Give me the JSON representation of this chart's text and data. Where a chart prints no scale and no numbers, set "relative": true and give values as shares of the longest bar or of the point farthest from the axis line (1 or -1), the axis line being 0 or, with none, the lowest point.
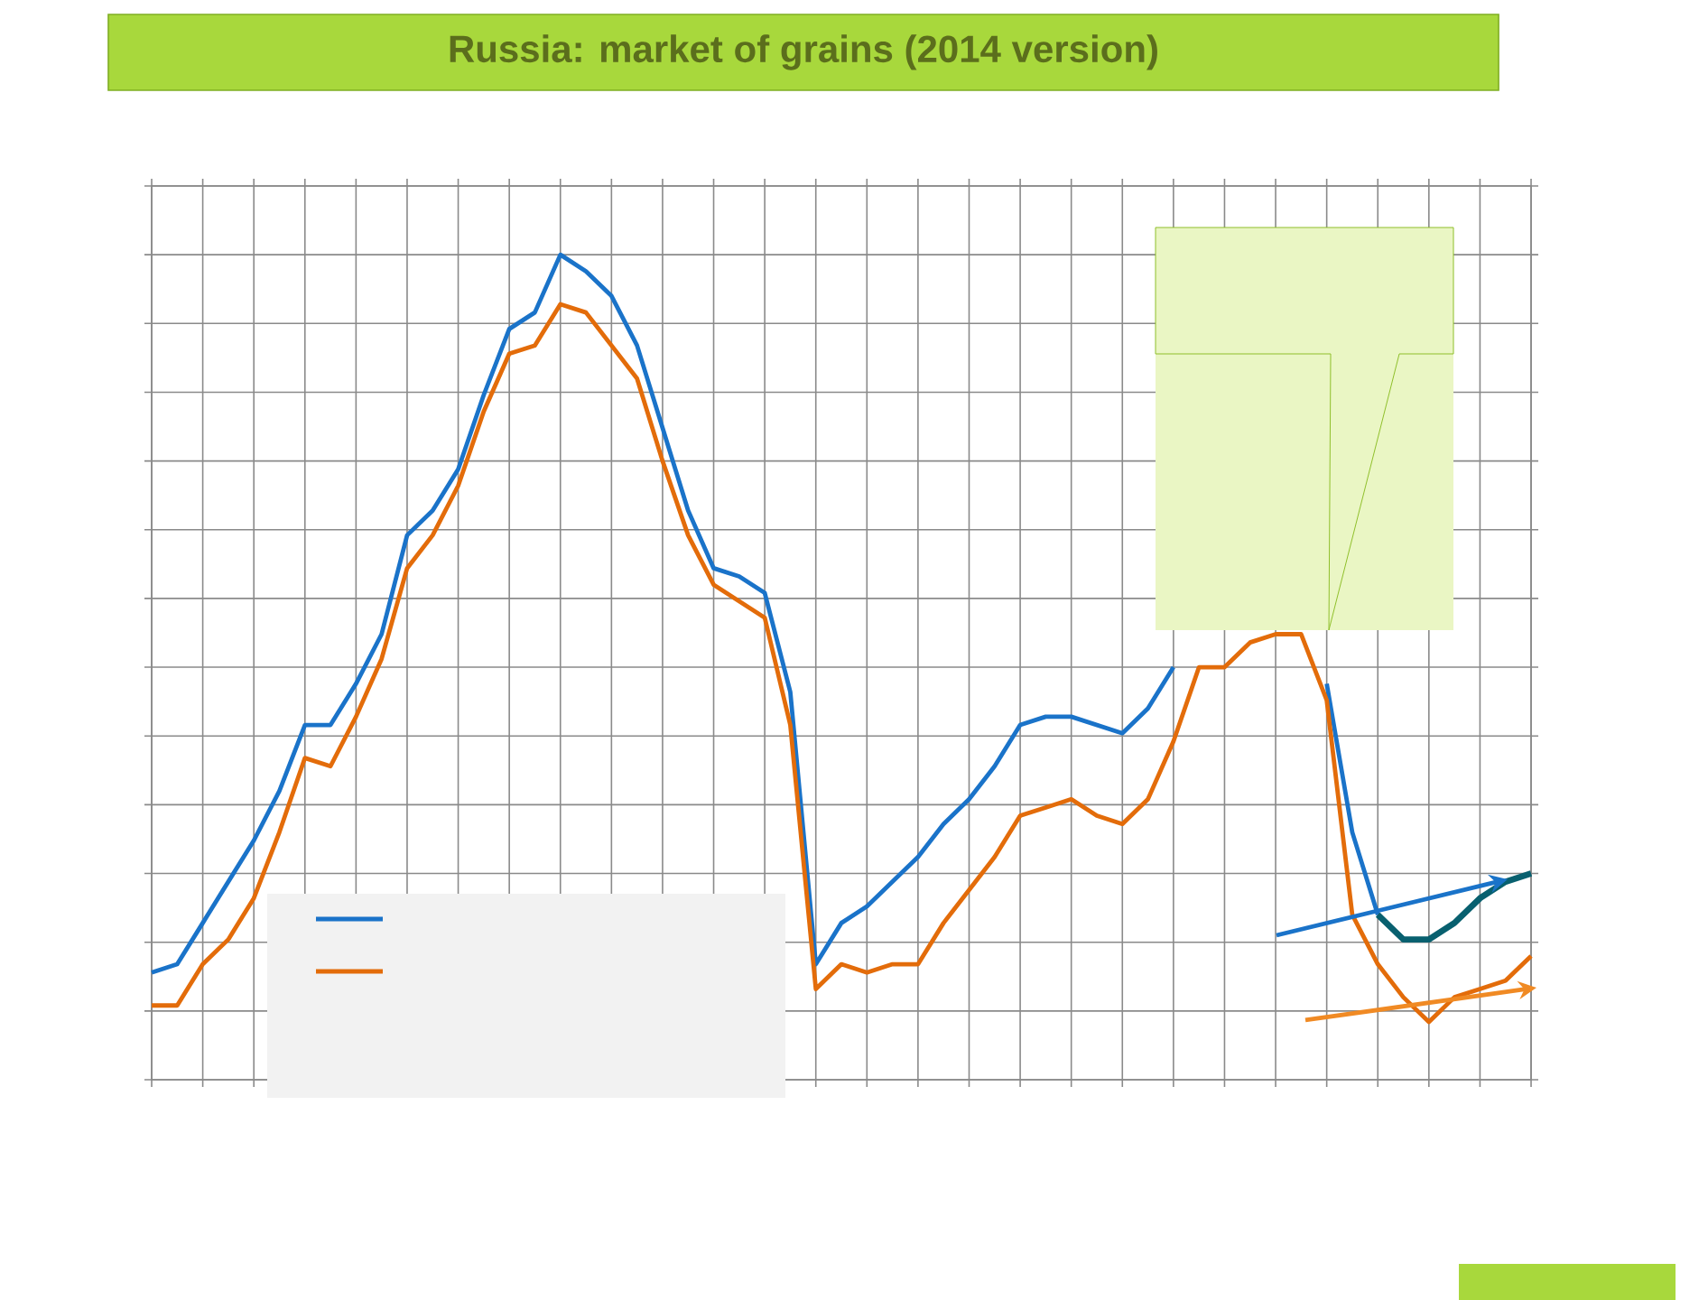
{
  "chart_data": {
    "type": "line",
    "title": "Russia: market of grains (2014 version)",
    "categories": [
      null,
      null,
      null,
      null,
      null,
      null,
      null,
      null,
      null,
      null,
      null,
      null,
      null,
      null,
      null,
      null,
      null,
      null,
      null,
      null,
      null,
      null,
      null,
      null,
      null,
      null,
      null,
      null,
      null,
      null,
      null,
      null,
      null,
      null,
      null,
      null,
      null,
      null,
      null,
      null,
      null,
      null,
      null,
      null,
      null,
      null,
      null,
      null,
      null,
      null,
      null,
      null,
      null,
      null,
      null
    ],
    "series": [
      {
        "color": "#1a73c9",
        "values": [
          0.13,
          0.14,
          0.19,
          0.24,
          0.29,
          0.35,
          0.43,
          0.43,
          0.48,
          0.54,
          0.66,
          0.69,
          0.74,
          0.83,
          0.91,
          0.93,
          1,
          0.98,
          0.95,
          0.89,
          0.79,
          0.69,
          0.62,
          0.61,
          0.59,
          0.47,
          0.14,
          0.19,
          0.21,
          0.24,
          0.27,
          0.31,
          0.34,
          0.38,
          0.43,
          0.44,
          0.44,
          0.43,
          0.42,
          0.45,
          0.5,
          null,
          null,
          null,
          null,
          null,
          0.48,
          0.3,
          0.2,
          null,
          null,
          null,
          null,
          null,
          null
        ]
      },
      {
        "color": "#e36c0a",
        "values": [
          0.09,
          0.09,
          0.14,
          0.17,
          0.22,
          0.3,
          0.39,
          0.38,
          0.44,
          0.51,
          0.62,
          0.66,
          0.72,
          0.81,
          0.88,
          0.89,
          0.94,
          0.93,
          0.89,
          0.85,
          0.75,
          0.66,
          0.6,
          0.58,
          0.56,
          0.43,
          0.11,
          0.14,
          0.13,
          0.14,
          0.14,
          0.19,
          0.23,
          0.27,
          0.32,
          0.33,
          0.34,
          0.32,
          0.31,
          0.34,
          0.41,
          0.5,
          0.5,
          0.53,
          0.54,
          0.54,
          0.46,
          0.2,
          0.14,
          0.1,
          0.07,
          0.1,
          0.11,
          0.12,
          0.15
        ]
      },
      {
        "color": "#08606f",
        "values": [
          null,
          null,
          null,
          null,
          null,
          null,
          null,
          null,
          null,
          null,
          null,
          null,
          null,
          null,
          null,
          null,
          null,
          null,
          null,
          null,
          null,
          null,
          null,
          null,
          null,
          null,
          null,
          null,
          null,
          null,
          null,
          null,
          null,
          null,
          null,
          null,
          null,
          null,
          null,
          null,
          null,
          null,
          null,
          null,
          null,
          null,
          null,
          null,
          0.2,
          0.17,
          0.17,
          0.19,
          0.22,
          0.24,
          0.25
        ]
      }
    ],
    "relative": true,
    "grid": true,
    "tick_labels": false
  }
}
